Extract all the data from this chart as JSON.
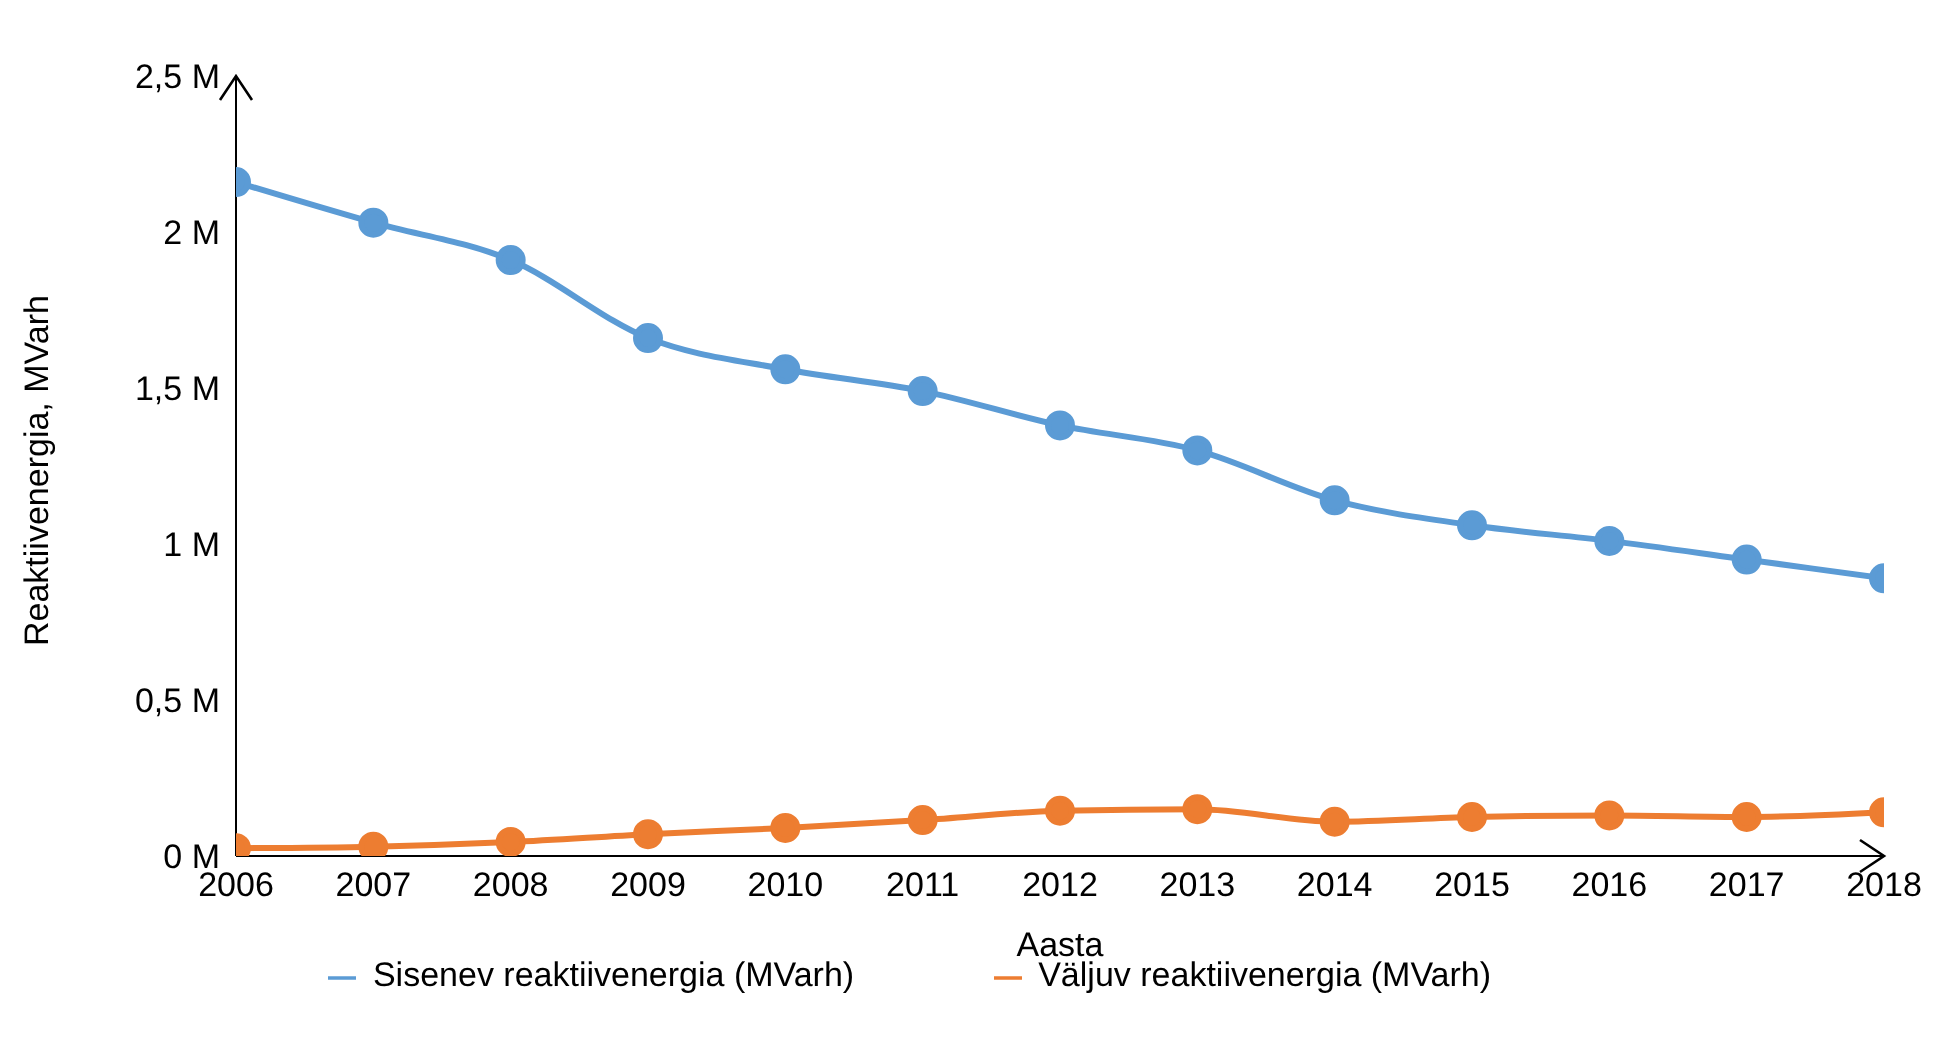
{
  "chart_data": {
    "type": "line",
    "xlabel": "Aasta",
    "ylabel": "Reaktiivenergia, MVarh",
    "x": [
      2006,
      2007,
      2008,
      2009,
      2010,
      2011,
      2012,
      2013,
      2014,
      2015,
      2016,
      2017,
      2018
    ],
    "xlim": [
      2006,
      2018
    ],
    "xticks": [
      2006,
      2007,
      2008,
      2009,
      2010,
      2011,
      2012,
      2013,
      2014,
      2015,
      2016,
      2017,
      2018
    ],
    "ylim": [
      0,
      2500000
    ],
    "yticks": [
      {
        "value": 0,
        "label": "0 M"
      },
      {
        "value": 500000,
        "label": "0,5 M"
      },
      {
        "value": 1000000,
        "label": "1 M"
      },
      {
        "value": 1500000,
        "label": "1,5 M"
      },
      {
        "value": 2000000,
        "label": "2 M"
      },
      {
        "value": 2500000,
        "label": "2,5 M"
      }
    ],
    "series": [
      {
        "name": "Sisenev reaktiivenergia (MVarh)",
        "color": "#5b9bd5",
        "values": [
          2160000,
          2030000,
          1910000,
          1660000,
          1560000,
          1490000,
          1380000,
          1300000,
          1140000,
          1060000,
          1010000,
          950000,
          890000
        ]
      },
      {
        "name": "Väljuv reaktiivenergia (MVarh)",
        "color": "#ed7d31",
        "values": [
          25000,
          30000,
          45000,
          70000,
          90000,
          115000,
          145000,
          150000,
          110000,
          125000,
          130000,
          125000,
          140000
        ]
      }
    ],
    "marker": "circle",
    "line_style": "solid",
    "grid": false,
    "legend": "bottom"
  }
}
